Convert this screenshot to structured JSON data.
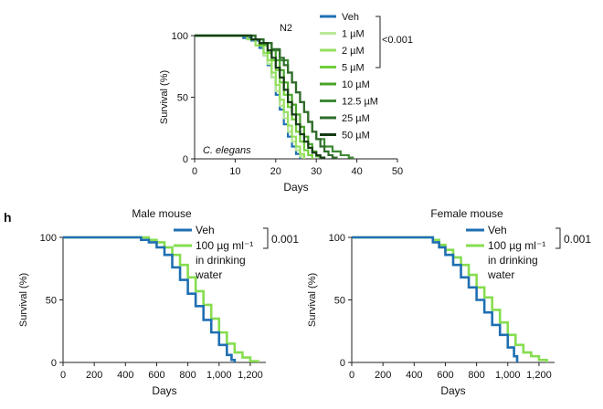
{
  "panel_label": "h",
  "colors": {
    "veh": "#1f6fb2",
    "treated_mouse": "#86dd4f",
    "worm_doses": [
      "#bde89a",
      "#96e05e",
      "#72cf3c",
      "#4aa32a",
      "#3f8a35",
      "#2f6b2a",
      "#163d16"
    ]
  },
  "chart_data": [
    {
      "type": "line",
      "title": "N2",
      "annotation": "C. elegans",
      "xlabel": "Days",
      "ylabel": "Survival (%)",
      "xlim": [
        0,
        50
      ],
      "ylim": [
        0,
        100
      ],
      "xticks": [
        "0",
        "10",
        "20",
        "30",
        "40",
        "50"
      ],
      "yticks": [
        "0",
        "50",
        "100"
      ],
      "legend": {
        "placement": "right",
        "bracket_label": "<0.001"
      },
      "series": [
        {
          "name": "Veh",
          "points": [
            [
              0,
              100
            ],
            [
              8,
              100
            ],
            [
              12,
              98
            ],
            [
              14,
              96
            ],
            [
              16,
              90
            ],
            [
              17,
              84
            ],
            [
              18,
              76
            ],
            [
              19,
              66
            ],
            [
              20,
              52
            ],
            [
              21,
              40
            ],
            [
              22,
              28
            ],
            [
              23,
              18
            ],
            [
              24,
              10
            ],
            [
              25,
              4
            ],
            [
              26,
              0
            ]
          ]
        },
        {
          "name": "1 µM",
          "points": [
            [
              0,
              100
            ],
            [
              9,
              100
            ],
            [
              13,
              97
            ],
            [
              15,
              92
            ],
            [
              17,
              84
            ],
            [
              18,
              77
            ],
            [
              19,
              66
            ],
            [
              20,
              55
            ],
            [
              21,
              43
            ],
            [
              22,
              33
            ],
            [
              23,
              22
            ],
            [
              24,
              14
            ],
            [
              25,
              7
            ],
            [
              26,
              2
            ],
            [
              27,
              0
            ]
          ]
        },
        {
          "name": "2 µM",
          "points": [
            [
              0,
              100
            ],
            [
              9,
              100
            ],
            [
              13,
              97
            ],
            [
              15,
              92
            ],
            [
              17,
              86
            ],
            [
              18,
              80
            ],
            [
              19,
              70
            ],
            [
              20,
              60
            ],
            [
              21,
              48
            ],
            [
              22,
              38
            ],
            [
              23,
              27
            ],
            [
              24,
              18
            ],
            [
              25,
              10
            ],
            [
              26,
              4
            ],
            [
              27,
              0
            ]
          ]
        },
        {
          "name": "5 µM",
          "points": [
            [
              0,
              100
            ],
            [
              10,
              100
            ],
            [
              14,
              97
            ],
            [
              16,
              92
            ],
            [
              18,
              86
            ],
            [
              19,
              80
            ],
            [
              20,
              72
            ],
            [
              21,
              62
            ],
            [
              22,
              52
            ],
            [
              23,
              42
            ],
            [
              24,
              32
            ],
            [
              25,
              22
            ],
            [
              26,
              14
            ],
            [
              27,
              7
            ],
            [
              28,
              3
            ],
            [
              29,
              0
            ]
          ]
        },
        {
          "name": "10 µM",
          "points": [
            [
              0,
              100
            ],
            [
              10,
              100
            ],
            [
              14,
              97
            ],
            [
              16,
              93
            ],
            [
              18,
              88
            ],
            [
              20,
              80
            ],
            [
              21,
              72
            ],
            [
              22,
              62
            ],
            [
              23,
              52
            ],
            [
              24,
              44
            ],
            [
              25,
              36
            ],
            [
              26,
              26
            ],
            [
              27,
              18
            ],
            [
              28,
              12
            ],
            [
              29,
              6
            ],
            [
              30,
              2
            ],
            [
              31,
              0
            ]
          ]
        },
        {
          "name": "12.5 µM",
          "points": [
            [
              0,
              100
            ],
            [
              11,
              100
            ],
            [
              15,
              97
            ],
            [
              17,
              94
            ],
            [
              19,
              88
            ],
            [
              21,
              80
            ],
            [
              23,
              70
            ],
            [
              24,
              62
            ],
            [
              25,
              54
            ],
            [
              26,
              46
            ],
            [
              27,
              38
            ],
            [
              28,
              30
            ],
            [
              29,
              22
            ],
            [
              30,
              16
            ],
            [
              32,
              10
            ],
            [
              34,
              6
            ],
            [
              36,
              3
            ],
            [
              38,
              1
            ],
            [
              39,
              0
            ]
          ]
        },
        {
          "name": "25 µM",
          "points": [
            [
              0,
              100
            ],
            [
              11,
              100
            ],
            [
              15,
              97
            ],
            [
              17,
              94
            ],
            [
              19,
              89
            ],
            [
              21,
              82
            ],
            [
              22,
              76
            ],
            [
              23,
              70
            ],
            [
              24,
              62
            ],
            [
              25,
              54
            ],
            [
              26,
              46
            ],
            [
              27,
              38
            ],
            [
              28,
              30
            ],
            [
              29,
              22
            ],
            [
              30,
              16
            ],
            [
              31,
              10
            ],
            [
              32,
              6
            ],
            [
              33,
              3
            ],
            [
              34,
              1
            ],
            [
              35,
              0
            ]
          ]
        },
        {
          "name": "50 µM",
          "points": [
            [
              0,
              100
            ],
            [
              10,
              100
            ],
            [
              14,
              97
            ],
            [
              16,
              94
            ],
            [
              18,
              88
            ],
            [
              19,
              82
            ],
            [
              20,
              74
            ],
            [
              21,
              66
            ],
            [
              22,
              56
            ],
            [
              23,
              46
            ],
            [
              24,
              36
            ],
            [
              25,
              28
            ],
            [
              26,
              20
            ],
            [
              27,
              14
            ],
            [
              28,
              9
            ],
            [
              29,
              5
            ],
            [
              30,
              3
            ],
            [
              31,
              1
            ],
            [
              32,
              0
            ]
          ]
        }
      ]
    },
    {
      "type": "line",
      "title": "Male mouse",
      "xlabel": "Days",
      "ylabel": "Survival (%)",
      "xlim": [
        0,
        1300
      ],
      "ylim": [
        0,
        100
      ],
      "xticks": [
        "0",
        "200",
        "400",
        "600",
        "800",
        "1,000",
        "1,200"
      ],
      "yticks": [
        "0",
        "50",
        "100"
      ],
      "legend": {
        "placement": "top-right",
        "bracket_label": "0.001"
      },
      "series": [
        {
          "name": "Veh",
          "points": [
            [
              0,
              100
            ],
            [
              450,
              100
            ],
            [
              500,
              98
            ],
            [
              550,
              96
            ],
            [
              600,
              92
            ],
            [
              650,
              86
            ],
            [
              700,
              76
            ],
            [
              750,
              66
            ],
            [
              800,
              55
            ],
            [
              850,
              45
            ],
            [
              900,
              34
            ],
            [
              950,
              24
            ],
            [
              1000,
              14
            ],
            [
              1050,
              6
            ],
            [
              1080,
              2
            ],
            [
              1100,
              0
            ]
          ]
        },
        {
          "name": "100 µg ml⁻¹ in drinking water",
          "points": [
            [
              0,
              100
            ],
            [
              500,
              100
            ],
            [
              550,
              98
            ],
            [
              600,
              96
            ],
            [
              650,
              92
            ],
            [
              700,
              86
            ],
            [
              750,
              78
            ],
            [
              800,
              68
            ],
            [
              850,
              57
            ],
            [
              900,
              46
            ],
            [
              950,
              35
            ],
            [
              1000,
              24
            ],
            [
              1050,
              15
            ],
            [
              1100,
              8
            ],
            [
              1150,
              4
            ],
            [
              1200,
              1
            ],
            [
              1250,
              0
            ]
          ]
        }
      ]
    },
    {
      "type": "line",
      "title": "Female mouse",
      "xlabel": "Days",
      "ylabel": "Survival (%)",
      "xlim": [
        0,
        1300
      ],
      "ylim": [
        0,
        100
      ],
      "xticks": [
        "0",
        "200",
        "400",
        "600",
        "800",
        "1,000",
        "1,200"
      ],
      "yticks": [
        "0",
        "50",
        "100"
      ],
      "legend": {
        "placement": "top-right",
        "bracket_label": "0.001"
      },
      "series": [
        {
          "name": "Veh",
          "points": [
            [
              0,
              100
            ],
            [
              480,
              100
            ],
            [
              520,
              96
            ],
            [
              560,
              92
            ],
            [
              600,
              86
            ],
            [
              650,
              78
            ],
            [
              700,
              68
            ],
            [
              750,
              60
            ],
            [
              800,
              50
            ],
            [
              850,
              40
            ],
            [
              900,
              30
            ],
            [
              950,
              22
            ],
            [
              1000,
              12
            ],
            [
              1040,
              5
            ],
            [
              1060,
              0
            ]
          ]
        },
        {
          "name": "100 µg ml⁻¹ in drinking water",
          "points": [
            [
              0,
              100
            ],
            [
              480,
              100
            ],
            [
              520,
              98
            ],
            [
              560,
              94
            ],
            [
              600,
              90
            ],
            [
              650,
              84
            ],
            [
              700,
              78
            ],
            [
              750,
              70
            ],
            [
              800,
              60
            ],
            [
              850,
              52
            ],
            [
              900,
              42
            ],
            [
              950,
              32
            ],
            [
              1000,
              22
            ],
            [
              1050,
              14
            ],
            [
              1100,
              8
            ],
            [
              1150,
              5
            ],
            [
              1200,
              2
            ],
            [
              1250,
              0
            ]
          ]
        }
      ]
    }
  ]
}
